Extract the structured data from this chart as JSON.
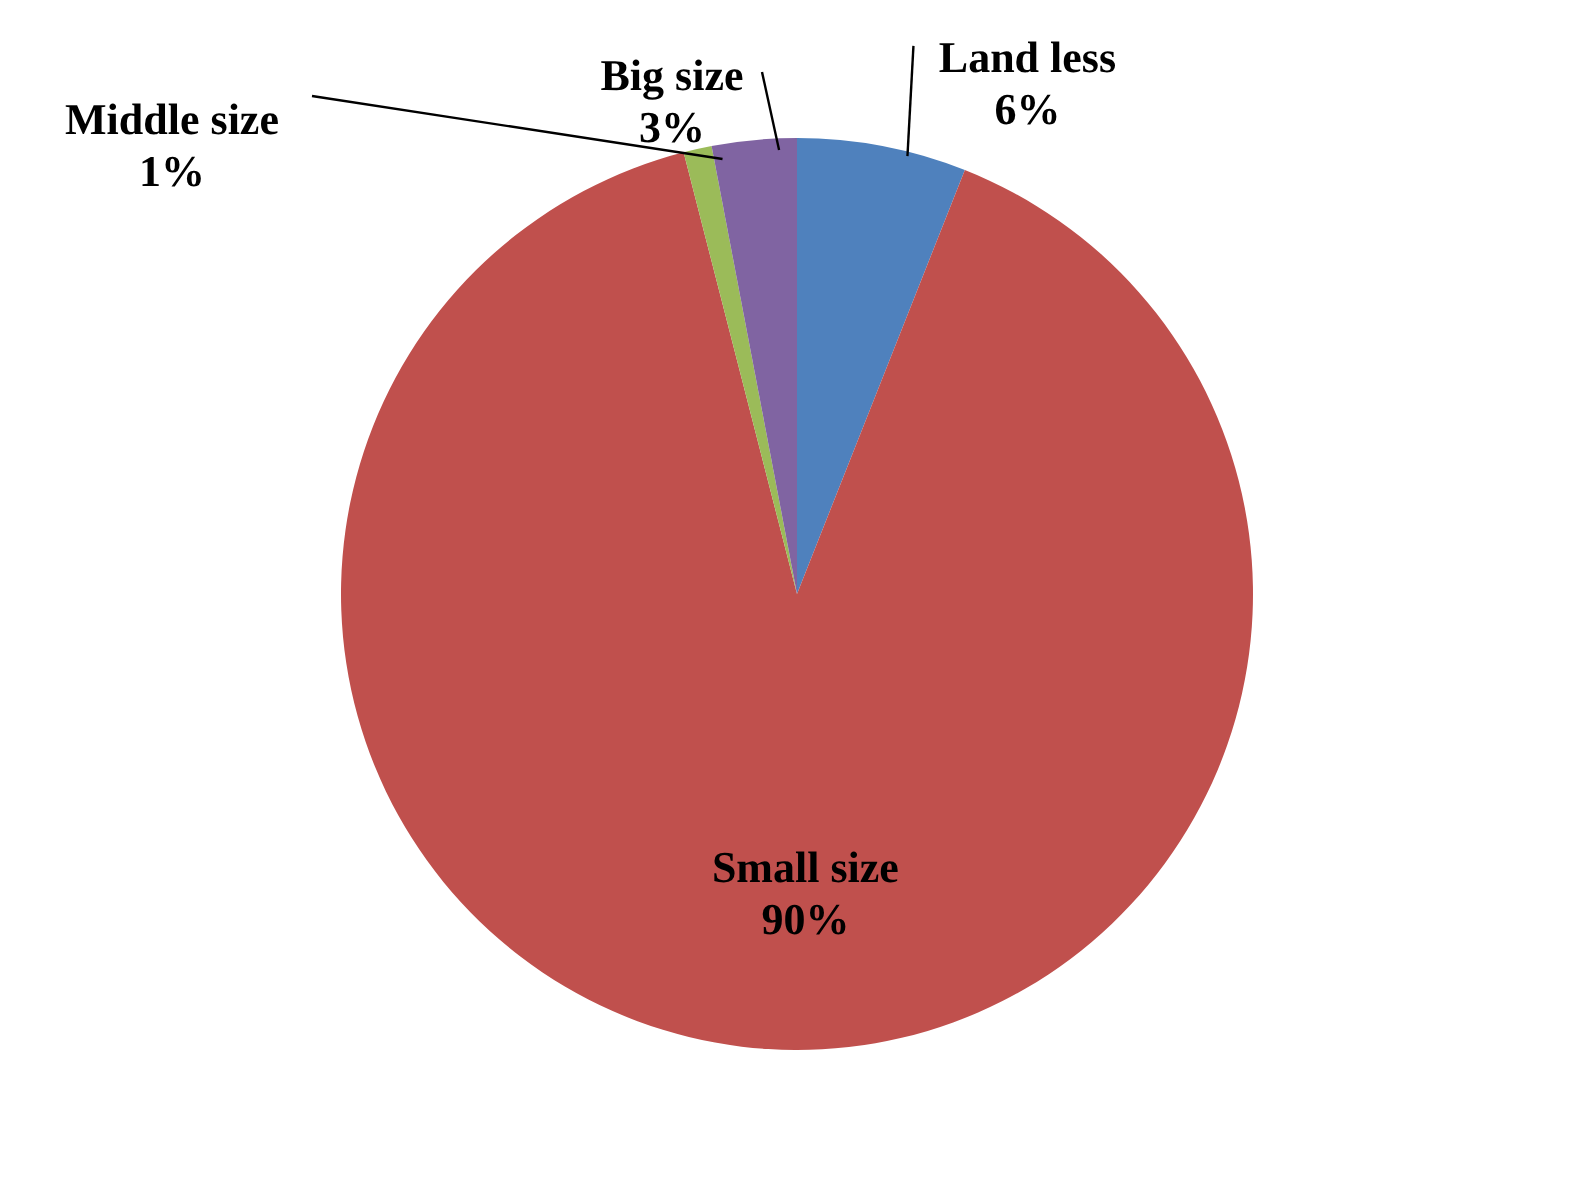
{
  "chart_data": {
    "type": "pie",
    "categories": [
      "Land less",
      "Small size",
      "Middle size",
      "Big size"
    ],
    "values": [
      6,
      90,
      1,
      3
    ],
    "colors": [
      "#4f81bd",
      "#c0504d",
      "#9bbb59",
      "#8064a2"
    ],
    "value_labels": [
      "6%",
      "90%",
      "1%",
      "3%"
    ]
  }
}
